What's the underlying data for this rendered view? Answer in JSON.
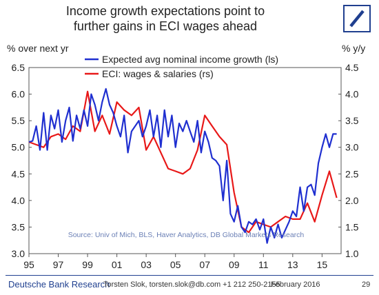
{
  "header": {
    "title_line1": "Income growth expectations point to",
    "title_line2": "further gains in ECI wages ahead"
  },
  "footer": {
    "brand": "Deutsche Bank Research",
    "author": "Torsten Slok, torsten.slok@db.com  +1 212 250-2155",
    "date": "February 2016",
    "page": "29"
  },
  "colors": {
    "blue": "#1f2fd0",
    "red": "#e81818",
    "brand": "#1f3f8f"
  },
  "chart_data": {
    "type": "line",
    "ylabel_left": "% over next yr",
    "ylabel_right": "% y/y",
    "source": "Source: Univ of Mich, BLS, Haver Analytics, DB Global Markets Research",
    "x_ticks": [
      "95",
      "97",
      "99",
      "01",
      "03",
      "05",
      "07",
      "09",
      "11",
      "13",
      "15"
    ],
    "xlim": [
      1995,
      2016.3
    ],
    "ylim_left": [
      3.0,
      6.5
    ],
    "ylim_right": [
      1.0,
      4.5
    ],
    "yticks_left": [
      "3.0",
      "3.5",
      "4.0",
      "4.5",
      "5.0",
      "5.5",
      "6.0",
      "6.5"
    ],
    "yticks_right": [
      "1.0",
      "1.5",
      "2.0",
      "2.5",
      "3.0",
      "3.5",
      "4.0",
      "4.5"
    ],
    "legend_position": "top-center",
    "series": [
      {
        "name": "Expected avg nominal income growth (ls)",
        "axis": "left",
        "color": "#1f2fd0",
        "x": [
          1995.0,
          1995.25,
          1995.5,
          1995.75,
          1996.0,
          1996.25,
          1996.5,
          1996.75,
          1997.0,
          1997.25,
          1997.5,
          1997.75,
          1998.0,
          1998.25,
          1998.5,
          1998.75,
          1999.0,
          1999.25,
          1999.5,
          1999.75,
          2000.0,
          2000.25,
          2000.5,
          2000.75,
          2001.0,
          2001.25,
          2001.5,
          2001.75,
          2002.0,
          2002.25,
          2002.5,
          2002.75,
          2003.0,
          2003.25,
          2003.5,
          2003.75,
          2004.0,
          2004.25,
          2004.5,
          2004.75,
          2005.0,
          2005.25,
          2005.5,
          2005.75,
          2006.0,
          2006.25,
          2006.5,
          2006.75,
          2007.0,
          2007.25,
          2007.5,
          2007.75,
          2008.0,
          2008.25,
          2008.5,
          2008.75,
          2009.0,
          2009.25,
          2009.5,
          2009.75,
          2010.0,
          2010.25,
          2010.5,
          2010.75,
          2011.0,
          2011.25,
          2011.5,
          2011.75,
          2012.0,
          2012.25,
          2012.5,
          2012.75,
          2013.0,
          2013.25,
          2013.5,
          2013.75,
          2014.0,
          2014.25,
          2014.5,
          2014.75,
          2015.0,
          2015.25,
          2015.5,
          2015.75,
          2016.0
        ],
        "values": [
          5.1,
          5.12,
          5.4,
          4.95,
          5.65,
          4.95,
          5.6,
          5.35,
          5.7,
          5.1,
          5.5,
          5.75,
          5.12,
          5.6,
          5.35,
          5.7,
          5.4,
          6.0,
          5.8,
          5.5,
          5.85,
          6.1,
          5.8,
          5.65,
          5.4,
          5.2,
          5.6,
          4.9,
          5.3,
          5.4,
          5.5,
          5.2,
          5.4,
          5.7,
          5.2,
          5.6,
          5.0,
          5.7,
          5.2,
          5.6,
          5.0,
          5.45,
          5.3,
          5.5,
          5.3,
          5.1,
          5.5,
          4.9,
          5.3,
          5.1,
          4.8,
          4.75,
          4.65,
          4.0,
          4.75,
          3.75,
          3.6,
          3.9,
          3.5,
          3.4,
          3.6,
          3.55,
          3.65,
          3.45,
          3.65,
          3.2,
          3.5,
          3.3,
          3.55,
          3.3,
          3.45,
          3.6,
          3.8,
          3.7,
          4.25,
          3.8,
          4.25,
          4.3,
          4.1,
          4.7,
          5.0,
          5.25,
          5.0,
          5.25,
          5.25
        ]
      },
      {
        "name": "ECI: wages & salaries (rs)",
        "axis": "right",
        "color": "#e81818",
        "x": [
          1995.0,
          1995.5,
          1996.0,
          1996.5,
          1997.0,
          1997.5,
          1998.0,
          1998.5,
          1999.0,
          1999.5,
          2000.0,
          2000.5,
          2001.0,
          2001.5,
          2002.0,
          2002.5,
          2003.0,
          2003.5,
          2004.0,
          2004.5,
          2005.0,
          2005.5,
          2006.0,
          2006.5,
          2007.0,
          2007.5,
          2008.0,
          2008.5,
          2009.0,
          2009.5,
          2010.0,
          2010.5,
          2011.0,
          2011.5,
          2012.0,
          2012.5,
          2013.0,
          2013.5,
          2014.0,
          2014.5,
          2015.0,
          2015.5,
          2016.0
        ],
        "values": [
          3.1,
          3.05,
          3.0,
          3.2,
          3.25,
          3.15,
          3.4,
          3.3,
          4.05,
          3.3,
          3.6,
          3.25,
          3.85,
          3.7,
          3.6,
          3.75,
          2.95,
          3.2,
          2.9,
          2.6,
          2.55,
          2.5,
          2.6,
          2.95,
          3.6,
          3.4,
          3.2,
          3.05,
          2.15,
          1.5,
          1.4,
          1.6,
          1.55,
          1.5,
          1.6,
          1.7,
          1.65,
          1.65,
          1.95,
          1.6,
          2.1,
          2.55,
          2.05
        ]
      }
    ]
  }
}
